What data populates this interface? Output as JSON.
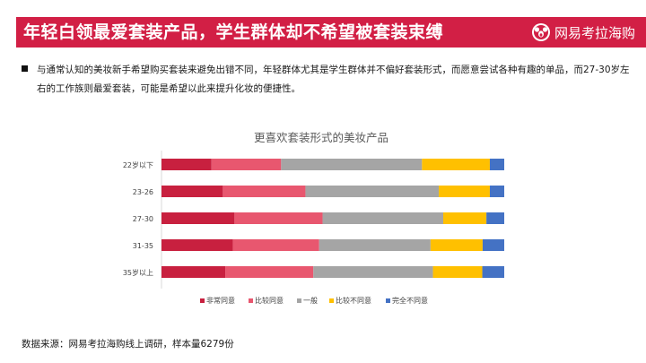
{
  "header": {
    "title": "年轻白领最爱套装产品，学生群体却不希望被套装束缚",
    "brand": "网易考拉海购"
  },
  "note": {
    "text": "与通常认知的美妆新手希望购买套装来避免出错不同，年轻群体尤其是学生群体并不偏好套装形式，而愿意尝试各种有趣的单品，而27-30岁左右的工作族则最爱套装，可能是希望以此来提升化妆的便捷性。"
  },
  "source": "数据来源：网易考拉海购线上调研，样本量6279份",
  "colors": {
    "header_bg": "#d21f45",
    "series": [
      "#c8203f",
      "#e8576f",
      "#a5a5a5",
      "#ffc000",
      "#4472c4"
    ]
  },
  "chart_data": {
    "type": "bar",
    "orientation": "horizontal",
    "stacked": true,
    "percent": true,
    "title": "更喜欢套装形式的美妆产品",
    "categories": [
      "22岁以下",
      "23-26",
      "27-30",
      "31-35",
      "35岁以上"
    ],
    "series": [
      {
        "name": "非常同意",
        "values": [
          14.6,
          17.9,
          21.3,
          20.8,
          18.6
        ]
      },
      {
        "name": "比较同意",
        "values": [
          20.3,
          24.1,
          25.7,
          25.2,
          25.7
        ]
      },
      {
        "name": "一般",
        "values": [
          41.1,
          38.9,
          35.2,
          32.5,
          34.9
        ]
      },
      {
        "name": "比较不同意",
        "values": [
          19.8,
          14.9,
          12.6,
          15.2,
          14.4
        ]
      },
      {
        "name": "完全不同意",
        "values": [
          4.2,
          4.2,
          5.2,
          6.3,
          6.4
        ]
      }
    ],
    "xlim": [
      0,
      100
    ],
    "legend_position": "bottom"
  }
}
